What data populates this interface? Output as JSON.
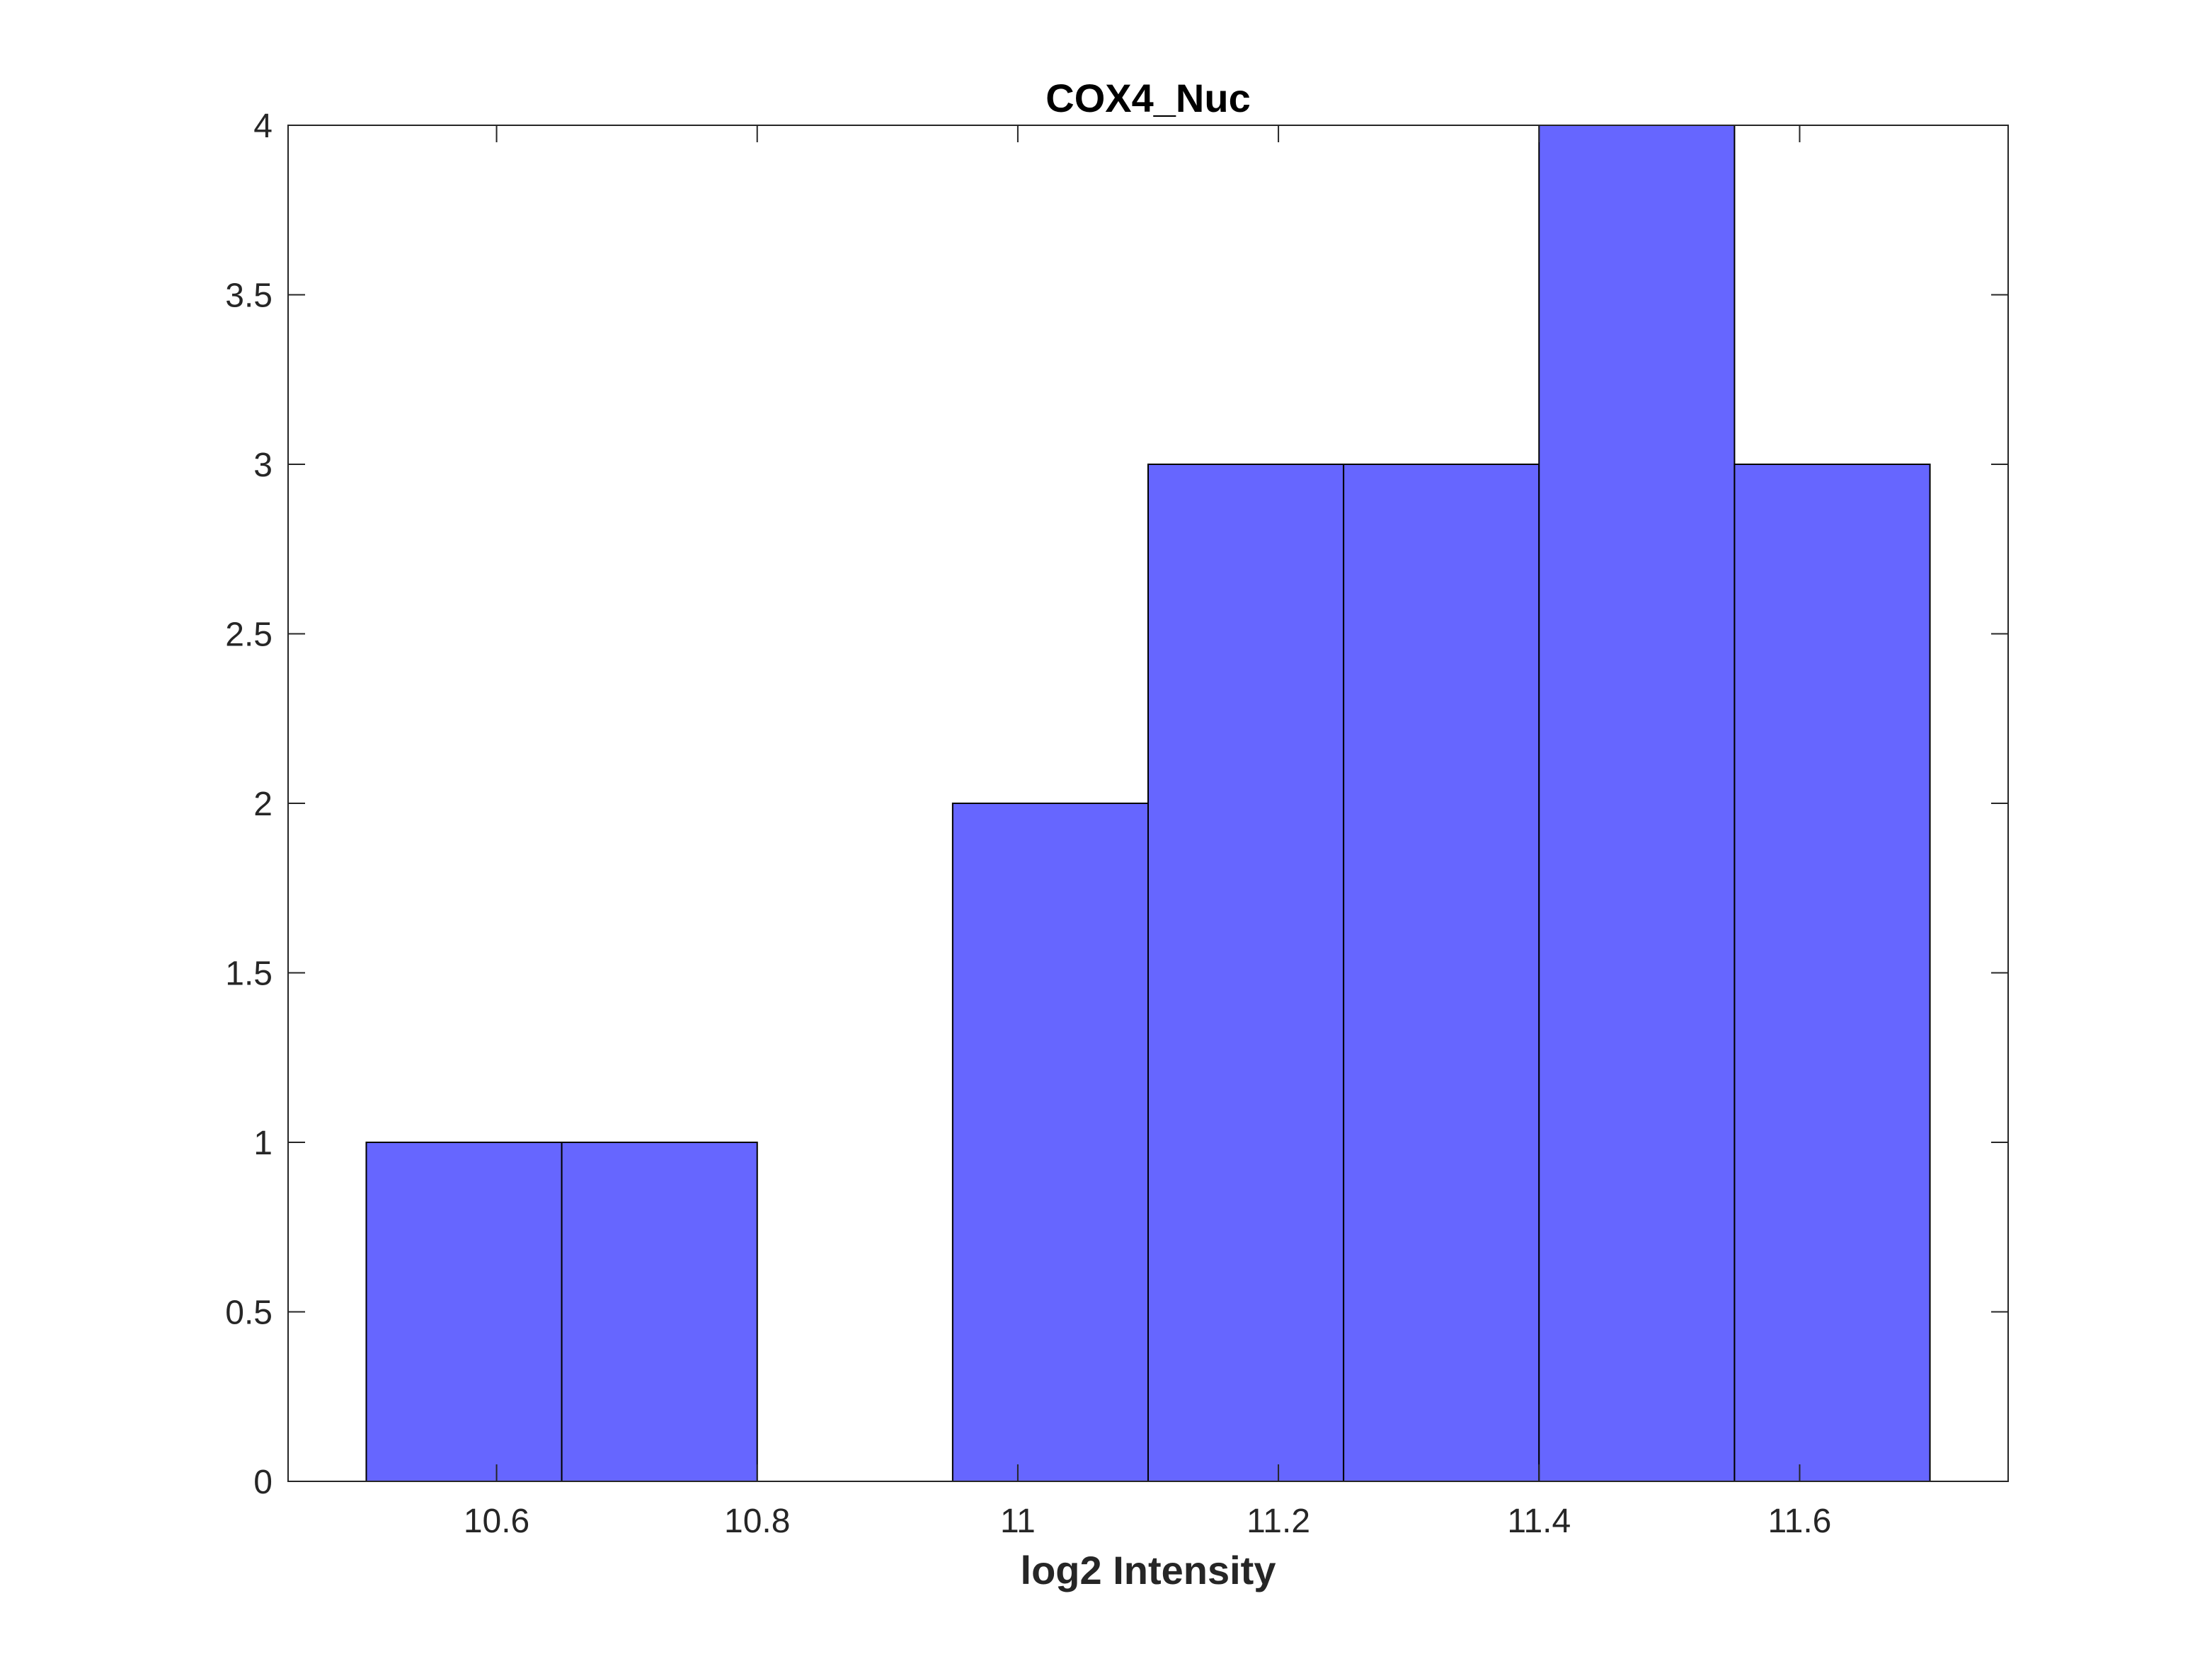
{
  "chart_data": {
    "type": "bar",
    "subtype": "histogram",
    "title": "COX4_Nuc",
    "xlabel": "log2 Intensity",
    "ylabel": "",
    "xlim": [
      10.44,
      11.76
    ],
    "ylim": [
      0,
      4
    ],
    "xticks": [
      10.6,
      10.8,
      11.0,
      11.2,
      11.4,
      11.6
    ],
    "xtick_labels": [
      "10.6",
      "10.8",
      "11",
      "11.2",
      "11.4",
      "11.6"
    ],
    "yticks": [
      0,
      0.5,
      1,
      1.5,
      2,
      2.5,
      3,
      3.5,
      4
    ],
    "ytick_labels": [
      "0",
      "0.5",
      "1",
      "1.5",
      "2",
      "2.5",
      "3",
      "3.5",
      "4"
    ],
    "bin_edges": [
      10.5,
      10.65,
      10.8,
      10.95,
      11.1,
      11.25,
      11.4,
      11.55,
      11.7
    ],
    "counts": [
      1,
      1,
      0,
      2,
      3,
      3,
      4,
      3
    ],
    "bar_color": "#6666ff",
    "edge_color": "#000000",
    "grid": false,
    "legend": "none"
  }
}
